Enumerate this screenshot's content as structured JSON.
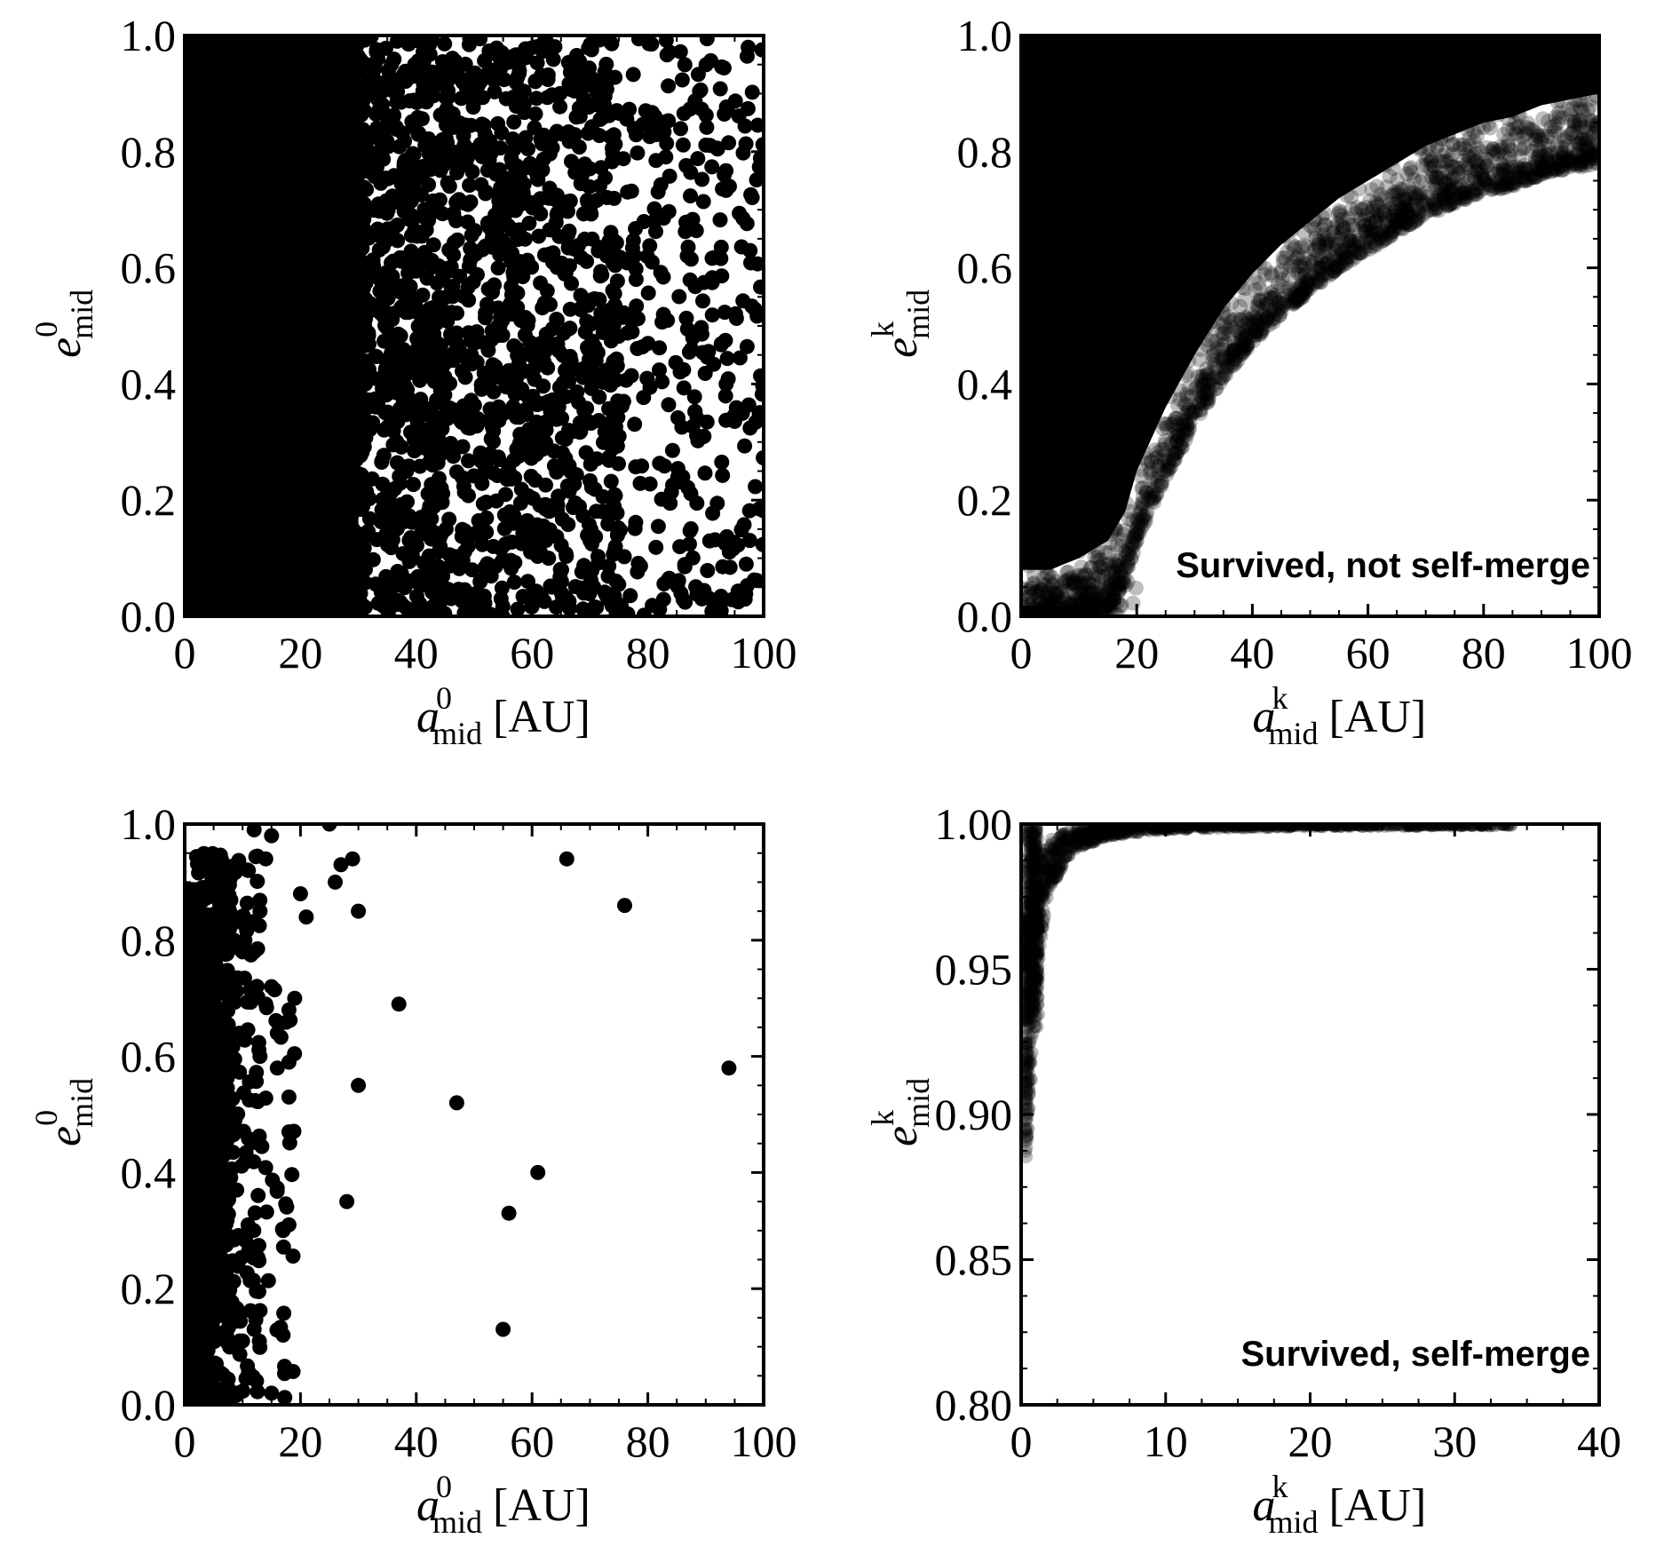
{
  "chart_data": [
    {
      "type": "scatter",
      "id": "tl",
      "marker_color": "#000000",
      "marker_opacity": 1.0,
      "x_label": {
        "main": "a",
        "sup": "0",
        "sub": "mid",
        "unit": "[AU]"
      },
      "y_label": {
        "main": "e",
        "sup": "0",
        "sub": "mid"
      },
      "xlim": [
        0,
        100
      ],
      "ylim": [
        0,
        1
      ],
      "xticks": [
        "0",
        "20",
        "40",
        "60",
        "80",
        "100"
      ],
      "yticks": [
        "0.0",
        "0.2",
        "0.4",
        "0.6",
        "0.8",
        "1.0"
      ],
      "annotation": "",
      "regions": [
        {
          "shape": "dense_block",
          "x_from": 0,
          "x_to": 30,
          "e_from": 0,
          "e_to": 1,
          "fill": 1.0
        },
        {
          "shape": "scatter_band",
          "x_from": 28,
          "x_to": 45,
          "e_from": 0,
          "e_to": 1,
          "n": 700
        },
        {
          "shape": "scatter_band",
          "x_from": 45,
          "x_to": 75,
          "e_from": 0,
          "e_to": 1,
          "n": 900
        },
        {
          "shape": "scatter_band",
          "x_from": 75,
          "x_to": 100,
          "e_from": 0,
          "e_to": 1,
          "n": 320
        }
      ]
    },
    {
      "type": "scatter",
      "id": "tr",
      "marker_color": "#000000",
      "marker_opacity": 0.25,
      "x_label": {
        "main": "a",
        "sup": "k",
        "sub": "mid",
        "unit": "[AU]"
      },
      "y_label": {
        "main": "e",
        "sup": "k",
        "sub": "mid"
      },
      "xlim": [
        0,
        100
      ],
      "ylim": [
        0,
        1
      ],
      "xticks": [
        "0",
        "20",
        "40",
        "60",
        "80",
        "100"
      ],
      "yticks": [
        "0.0",
        "0.2",
        "0.4",
        "0.6",
        "0.8",
        "1.0"
      ],
      "annotation": "Survived, not self-merge",
      "boundary_curve": {
        "a": [
          0,
          5,
          10,
          15,
          18,
          20,
          25,
          30,
          35,
          40,
          45,
          50,
          55,
          60,
          65,
          70,
          75,
          80,
          85,
          90,
          95,
          100
        ],
        "e": [
          0.0,
          0.0,
          0.02,
          0.05,
          0.1,
          0.17,
          0.28,
          0.37,
          0.45,
          0.51,
          0.56,
          0.6,
          0.64,
          0.67,
          0.7,
          0.73,
          0.75,
          0.77,
          0.78,
          0.8,
          0.81,
          0.82
        ]
      },
      "edge_points": 1800
    },
    {
      "type": "scatter",
      "id": "bl",
      "marker_color": "#000000",
      "marker_opacity": 1.0,
      "x_label": {
        "main": "a",
        "sup": "0",
        "sub": "mid",
        "unit": "[AU]"
      },
      "y_label": {
        "main": "e",
        "sup": "0",
        "sub": "mid"
      },
      "xlim": [
        0,
        100
      ],
      "ylim": [
        0,
        1
      ],
      "xticks": [
        "0",
        "20",
        "40",
        "60",
        "80",
        "100"
      ],
      "yticks": [
        "0.0",
        "0.2",
        "0.4",
        "0.6",
        "0.8",
        "1.0"
      ],
      "annotation": "",
      "regions": [
        {
          "shape": "dense_block",
          "x_from": 0,
          "x_to": 3.5,
          "e_from": 0,
          "e_to": 0.9,
          "fill": 1.0
        },
        {
          "shape": "scatter_band",
          "x_from": 2,
          "x_to": 8,
          "e_from": 0,
          "e_to": 0.95,
          "n": 420
        },
        {
          "shape": "scatter_band",
          "x_from": 6,
          "x_to": 13,
          "e_from": 0,
          "e_to": 0.95,
          "n": 150
        },
        {
          "shape": "scatter_band",
          "x_from": 12,
          "x_to": 19,
          "e_from": 0,
          "e_to": 0.75,
          "n": 35
        }
      ],
      "points": [
        [
          15,
          0.02
        ],
        [
          17,
          0.12
        ],
        [
          10,
          0.11
        ],
        [
          12,
          0.13
        ],
        [
          9,
          0.02
        ],
        [
          18,
          0.31
        ],
        [
          17,
          0.3
        ],
        [
          18,
          0.47
        ],
        [
          18,
          0.53
        ],
        [
          18,
          0.59
        ],
        [
          18,
          0.68
        ],
        [
          19,
          0.7
        ],
        [
          16,
          0.58
        ],
        [
          16,
          0.64
        ],
        [
          15,
          0.72
        ],
        [
          14,
          0.69
        ],
        [
          13,
          0.6
        ],
        [
          12,
          0.7
        ],
        [
          10,
          0.78
        ],
        [
          12,
          0.78
        ],
        [
          13,
          0.85
        ],
        [
          11,
          0.92
        ],
        [
          12,
          0.99
        ],
        [
          14,
          0.94
        ],
        [
          15,
          0.98
        ],
        [
          20,
          0.88
        ],
        [
          21,
          0.84
        ],
        [
          25,
          1.0
        ],
        [
          26,
          0.9
        ],
        [
          27,
          0.93
        ],
        [
          29,
          0.94
        ],
        [
          30,
          0.85
        ],
        [
          28,
          0.35
        ],
        [
          30,
          0.55
        ],
        [
          37,
          0.69
        ],
        [
          47,
          0.52
        ],
        [
          55,
          0.13
        ],
        [
          56,
          0.33
        ],
        [
          61,
          0.4
        ],
        [
          66,
          0.94
        ],
        [
          76,
          0.86
        ],
        [
          94,
          0.58
        ]
      ]
    },
    {
      "type": "scatter",
      "id": "br",
      "marker_color": "#000000",
      "marker_opacity": 0.25,
      "x_label": {
        "main": "a",
        "sup": "k",
        "sub": "mid",
        "unit": "[AU]"
      },
      "y_label": {
        "main": "e",
        "sup": "k",
        "sub": "mid"
      },
      "xlim": [
        0,
        40
      ],
      "ylim": [
        0.8,
        1.0
      ],
      "xticks": [
        "0",
        "10",
        "20",
        "30",
        "40"
      ],
      "yticks": [
        "0.80",
        "0.85",
        "0.90",
        "0.95",
        "1.00"
      ],
      "annotation": "Survived, self-merge",
      "curve": {
        "a": [
          0.3,
          0.5,
          0.7,
          1.0,
          1.5,
          2.0,
          3.0,
          4.0,
          6.0,
          8.0,
          10,
          15,
          20,
          30,
          34
        ],
        "e": [
          0.905,
          0.92,
          0.935,
          0.955,
          0.972,
          0.982,
          0.99,
          0.994,
          0.997,
          0.998,
          0.9988,
          0.9993,
          0.9996,
          0.9998,
          0.9999
        ]
      },
      "points": [
        [
          0.5,
          0.895
        ],
        [
          0.7,
          0.912
        ],
        [
          0.6,
          0.92
        ],
        [
          0.8,
          0.928
        ]
      ]
    }
  ]
}
